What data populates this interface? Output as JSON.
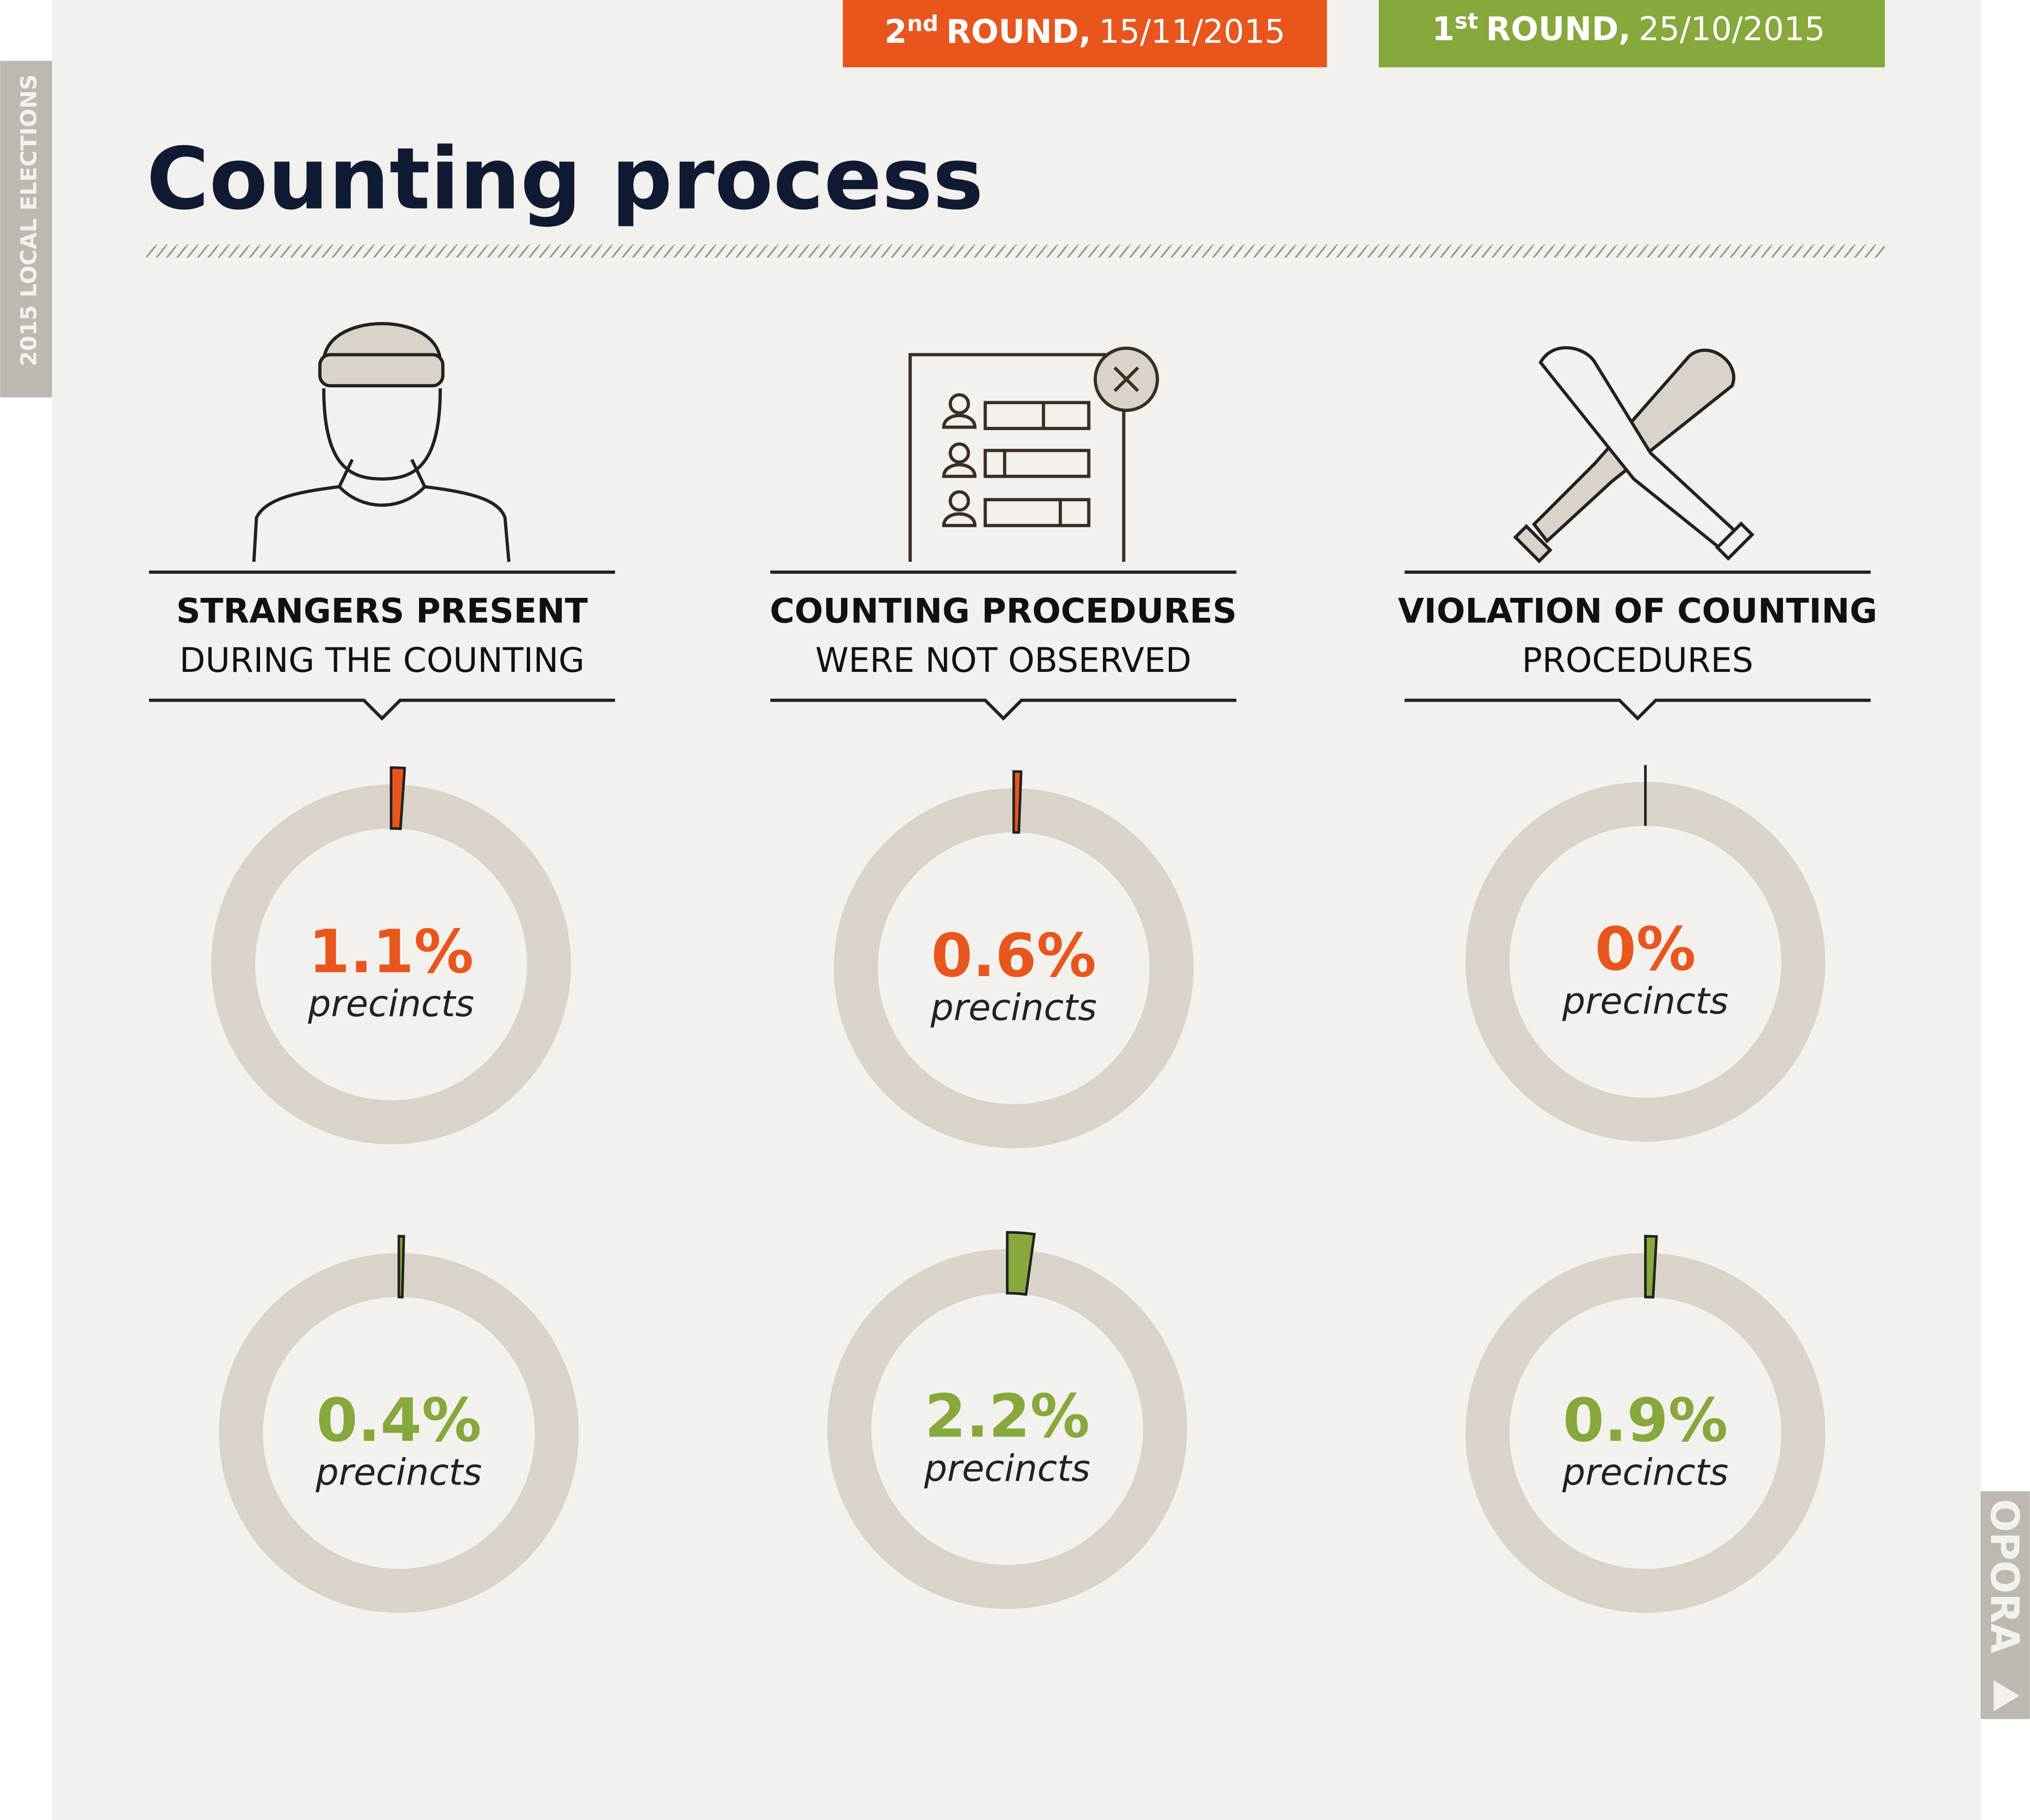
{
  "header": {
    "side_label": "2015 LOCAL ELECTIONS",
    "round2": {
      "number": "2",
      "suffix": "nd",
      "label": "ROUND,",
      "date": "15/11/2015",
      "color": "#e8561e"
    },
    "round1": {
      "number": "1",
      "suffix": "st",
      "label": "ROUND,",
      "date": "25/10/2015",
      "color": "#86a83c"
    },
    "title": "Counting process",
    "brand": "OPORA"
  },
  "columns": [
    {
      "heading_bold": "STRANGERS PRESENT",
      "heading_rest": "DURING THE COUNTING"
    },
    {
      "heading_bold": "COUNTING PROCEDURES",
      "heading_rest": "WERE NOT OBSERVED"
    },
    {
      "heading_bold": "VIOLATION OF COUNTING",
      "heading_rest": "PROCEDURES"
    }
  ],
  "chart_data": [
    {
      "type": "donut",
      "values": [
        1.1
      ],
      "value_labels": [
        "1.1%"
      ],
      "unit_label": "precincts",
      "color": "#e8561e"
    },
    {
      "type": "donut",
      "values": [
        0.6
      ],
      "value_labels": [
        "0.6%"
      ],
      "unit_label": "precincts",
      "color": "#e8561e"
    },
    {
      "type": "donut",
      "values": [
        0
      ],
      "value_labels": [
        "0%"
      ],
      "unit_label": "precincts",
      "color": "#e8561e"
    },
    {
      "type": "donut",
      "values": [
        0.4
      ],
      "value_labels": [
        "0.4%"
      ],
      "unit_label": "precincts",
      "color": "#86a83c"
    },
    {
      "type": "donut",
      "values": [
        2.2
      ],
      "value_labels": [
        "2.2%"
      ],
      "unit_label": "precincts",
      "color": "#86a83c"
    },
    {
      "type": "donut",
      "values": [
        0.9
      ],
      "value_labels": [
        "0.9%"
      ],
      "unit_label": "precincts",
      "color": "#86a83c"
    }
  ]
}
